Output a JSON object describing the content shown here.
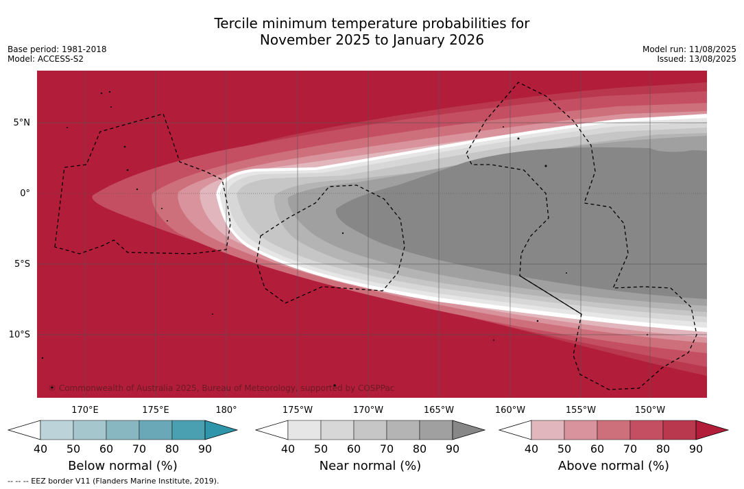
{
  "title_line1": "Tercile minimum temperature probabilities for",
  "title_line2": "November 2025 to January 2026",
  "base_period": "Base period: 1981-2018",
  "model": "Model: ACCESS-S2",
  "model_run": "Model run: 11/08/2025",
  "issued": "Issued: 13/08/2025",
  "copyright": "© Commonwealth of Australia 2025, Bureau of Meteorology, supported by COSPPac",
  "footnote": "-- -- -- EEZ border V11 (Flanders Marine Institute, 2019).",
  "map": {
    "lat_labels": [
      "5°N",
      "0°",
      "5°S",
      "10°S"
    ],
    "lon_labels": [
      "170°E",
      "175°E",
      "180°",
      "175°W",
      "170°W",
      "165°W",
      "160°W",
      "155°W",
      "150°W"
    ]
  },
  "colorbars": [
    {
      "title": "Below normal (%)",
      "ticks": [
        "40",
        "50",
        "60",
        "70",
        "80",
        "90"
      ],
      "colors": [
        "#ffffff",
        "#bcd3d9",
        "#a5c6cc",
        "#88b7c2",
        "#6aa8b8",
        "#4a9fb0",
        "#2e95ab"
      ]
    },
    {
      "title": "Near normal (%)",
      "ticks": [
        "40",
        "50",
        "60",
        "70",
        "80",
        "90"
      ],
      "colors": [
        "#ffffff",
        "#e6e6e6",
        "#d7d7d7",
        "#c6c6c6",
        "#b4b4b4",
        "#a0a0a0",
        "#878787"
      ]
    },
    {
      "title": "Above normal (%)",
      "ticks": [
        "40",
        "50",
        "60",
        "70",
        "80",
        "90"
      ],
      "colors": [
        "#ffffff",
        "#e2b6bd",
        "#d9939c",
        "#ce6f7c",
        "#c44f62",
        "#b9384d",
        "#b21d3a"
      ]
    }
  ]
}
